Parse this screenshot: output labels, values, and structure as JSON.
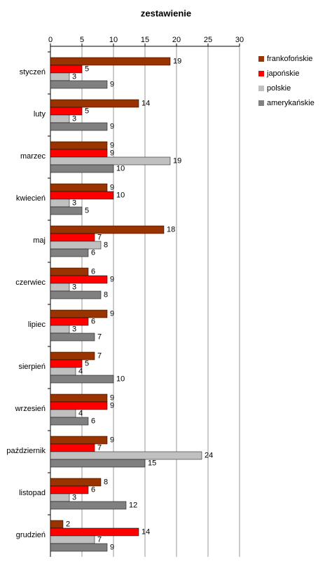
{
  "chart_data": {
    "type": "bar",
    "orientation": "horizontal",
    "title": "zestawienie",
    "categories": [
      "styczeń",
      "luty",
      "marzec",
      "kwiecień",
      "maj",
      "czerwiec",
      "lipiec",
      "sierpień",
      "wrzesień",
      "październik",
      "listopad",
      "grudzień"
    ],
    "series": [
      {
        "name": "frankofońskie",
        "color": "#993300",
        "values": [
          19,
          14,
          9,
          9,
          18,
          6,
          9,
          7,
          9,
          9,
          8,
          2
        ]
      },
      {
        "name": "japońskie",
        "color": "#ff0000",
        "values": [
          5,
          5,
          9,
          10,
          7,
          9,
          6,
          5,
          9,
          7,
          6,
          14
        ]
      },
      {
        "name": "polskie",
        "color": "#c0c0c0",
        "values": [
          3,
          3,
          19,
          3,
          8,
          3,
          3,
          4,
          4,
          24,
          3,
          7
        ]
      },
      {
        "name": "amerykańskie",
        "color": "#808080",
        "values": [
          9,
          9,
          10,
          5,
          6,
          8,
          7,
          10,
          6,
          15,
          12,
          9
        ]
      }
    ],
    "xlim": [
      0,
      30
    ],
    "xticks": [
      0,
      5,
      10,
      15,
      20,
      25,
      30
    ],
    "grid": true,
    "legend": "right"
  }
}
